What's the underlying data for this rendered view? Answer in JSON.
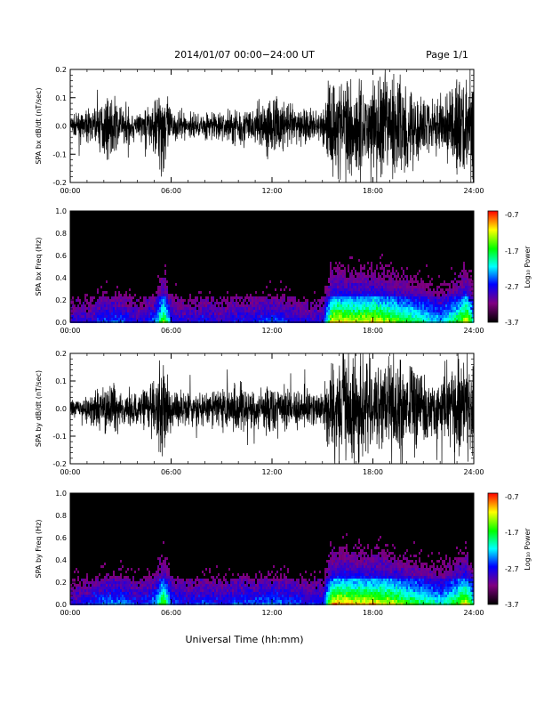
{
  "header": {
    "title": "2014/01/07  00:00−24:00 UT",
    "page": "Page 1/1"
  },
  "footer": {
    "xlabel": "Universal Time (hh:mm)"
  },
  "colorbar": {
    "label": "Log₁₀ Power",
    "ticks": [
      "-0.7",
      "-1.7",
      "-2.7",
      "-3.7"
    ],
    "colors": [
      "#ff0000",
      "#ffff00",
      "#00ff00",
      "#00ffff",
      "#0000ff",
      "#800080",
      "#000000"
    ]
  },
  "chart_data": [
    {
      "type": "line",
      "title": "",
      "xlabel": "",
      "ylabel": "SPA bx dB/dt (nT/sec)",
      "xticks": [
        "00:00",
        "06:00",
        "12:00",
        "18:00",
        "24:00"
      ],
      "yticks": [
        "0.2",
        "0.1",
        "0.0",
        "-0.1",
        "-0.2"
      ],
      "xlim": [
        0,
        24
      ],
      "ylim": [
        -0.2,
        0.2
      ],
      "series": [
        {
          "x": [
            0,
            1,
            2,
            2.5,
            3,
            4,
            5,
            5.5,
            6,
            7,
            8,
            9,
            10,
            11,
            12,
            13,
            14,
            15,
            15.5,
            16,
            17,
            18,
            19,
            20,
            21,
            22,
            23,
            23.5,
            24
          ],
          "amplitude": [
            0.04,
            0.05,
            0.1,
            0.12,
            0.08,
            0.05,
            0.1,
            0.2,
            0.06,
            0.05,
            0.05,
            0.06,
            0.08,
            0.07,
            0.12,
            0.08,
            0.07,
            0.06,
            0.2,
            0.2,
            0.2,
            0.2,
            0.2,
            0.2,
            0.12,
            0.1,
            0.2,
            0.2,
            0.2
          ]
        }
      ]
    },
    {
      "type": "heatmap",
      "title": "",
      "xlabel": "",
      "ylabel": "SPA bx Freq (Hz)",
      "xticks": [
        "00:00",
        "06:00",
        "12:00",
        "18:00",
        "24:00"
      ],
      "yticks": [
        "1.0",
        "0.8",
        "0.6",
        "0.4",
        "0.2",
        "0.0"
      ],
      "xlim": [
        0,
        24
      ],
      "ylim": [
        0,
        1.0
      ],
      "intensity_profile": {
        "x": [
          0,
          1,
          2,
          3,
          4,
          5,
          5.5,
          6,
          7,
          8,
          9,
          10,
          11,
          12,
          13,
          14,
          15,
          15.5,
          16,
          17,
          18,
          19,
          20,
          21,
          22,
          23,
          23.5,
          24
        ],
        "level": [
          0.3,
          0.3,
          0.4,
          0.4,
          0.3,
          0.4,
          0.8,
          0.35,
          0.3,
          0.35,
          0.3,
          0.35,
          0.35,
          0.4,
          0.35,
          0.3,
          0.3,
          0.9,
          0.9,
          0.85,
          0.9,
          0.8,
          0.7,
          0.6,
          0.5,
          0.7,
          0.9,
          0.5
        ]
      }
    },
    {
      "type": "line",
      "title": "",
      "xlabel": "",
      "ylabel": "SPA by dB/dt (nT/sec)",
      "xticks": [
        "00:00",
        "06:00",
        "12:00",
        "18:00",
        "24:00"
      ],
      "yticks": [
        "0.2",
        "0.1",
        "0.0",
        "-0.1",
        "-0.2"
      ],
      "xlim": [
        0,
        24
      ],
      "ylim": [
        -0.2,
        0.2
      ],
      "series": [
        {
          "x": [
            0,
            1,
            2,
            2.5,
            3,
            4,
            5,
            5.5,
            6,
            7,
            8,
            9,
            10,
            11,
            12,
            13,
            14,
            15,
            15.5,
            16,
            17,
            18,
            19,
            20,
            21,
            22,
            23,
            23.5,
            24
          ],
          "amplitude": [
            0.03,
            0.05,
            0.09,
            0.1,
            0.07,
            0.06,
            0.12,
            0.2,
            0.07,
            0.06,
            0.07,
            0.08,
            0.1,
            0.07,
            0.1,
            0.08,
            0.07,
            0.06,
            0.2,
            0.2,
            0.2,
            0.2,
            0.2,
            0.2,
            0.14,
            0.12,
            0.2,
            0.2,
            0.2
          ]
        }
      ]
    },
    {
      "type": "heatmap",
      "title": "",
      "xlabel": "",
      "ylabel": "SPA by Freq (Hz)",
      "xticks": [
        "00:00",
        "06:00",
        "12:00",
        "18:00",
        "24:00"
      ],
      "yticks": [
        "1.0",
        "0.8",
        "0.6",
        "0.4",
        "0.2",
        "0.0"
      ],
      "xlim": [
        0,
        24
      ],
      "ylim": [
        0,
        1.0
      ],
      "intensity_profile": {
        "x": [
          0,
          1,
          2,
          3,
          4,
          5,
          5.5,
          6,
          7,
          8,
          9,
          10,
          11,
          12,
          13,
          14,
          15,
          15.5,
          16,
          17,
          18,
          19,
          20,
          21,
          22,
          23,
          23.5,
          24
        ],
        "level": [
          0.3,
          0.35,
          0.45,
          0.45,
          0.35,
          0.45,
          0.8,
          0.4,
          0.35,
          0.4,
          0.35,
          0.4,
          0.4,
          0.45,
          0.4,
          0.35,
          0.35,
          0.9,
          0.95,
          0.9,
          0.9,
          0.85,
          0.75,
          0.65,
          0.55,
          0.75,
          0.9,
          0.5
        ]
      }
    }
  ]
}
